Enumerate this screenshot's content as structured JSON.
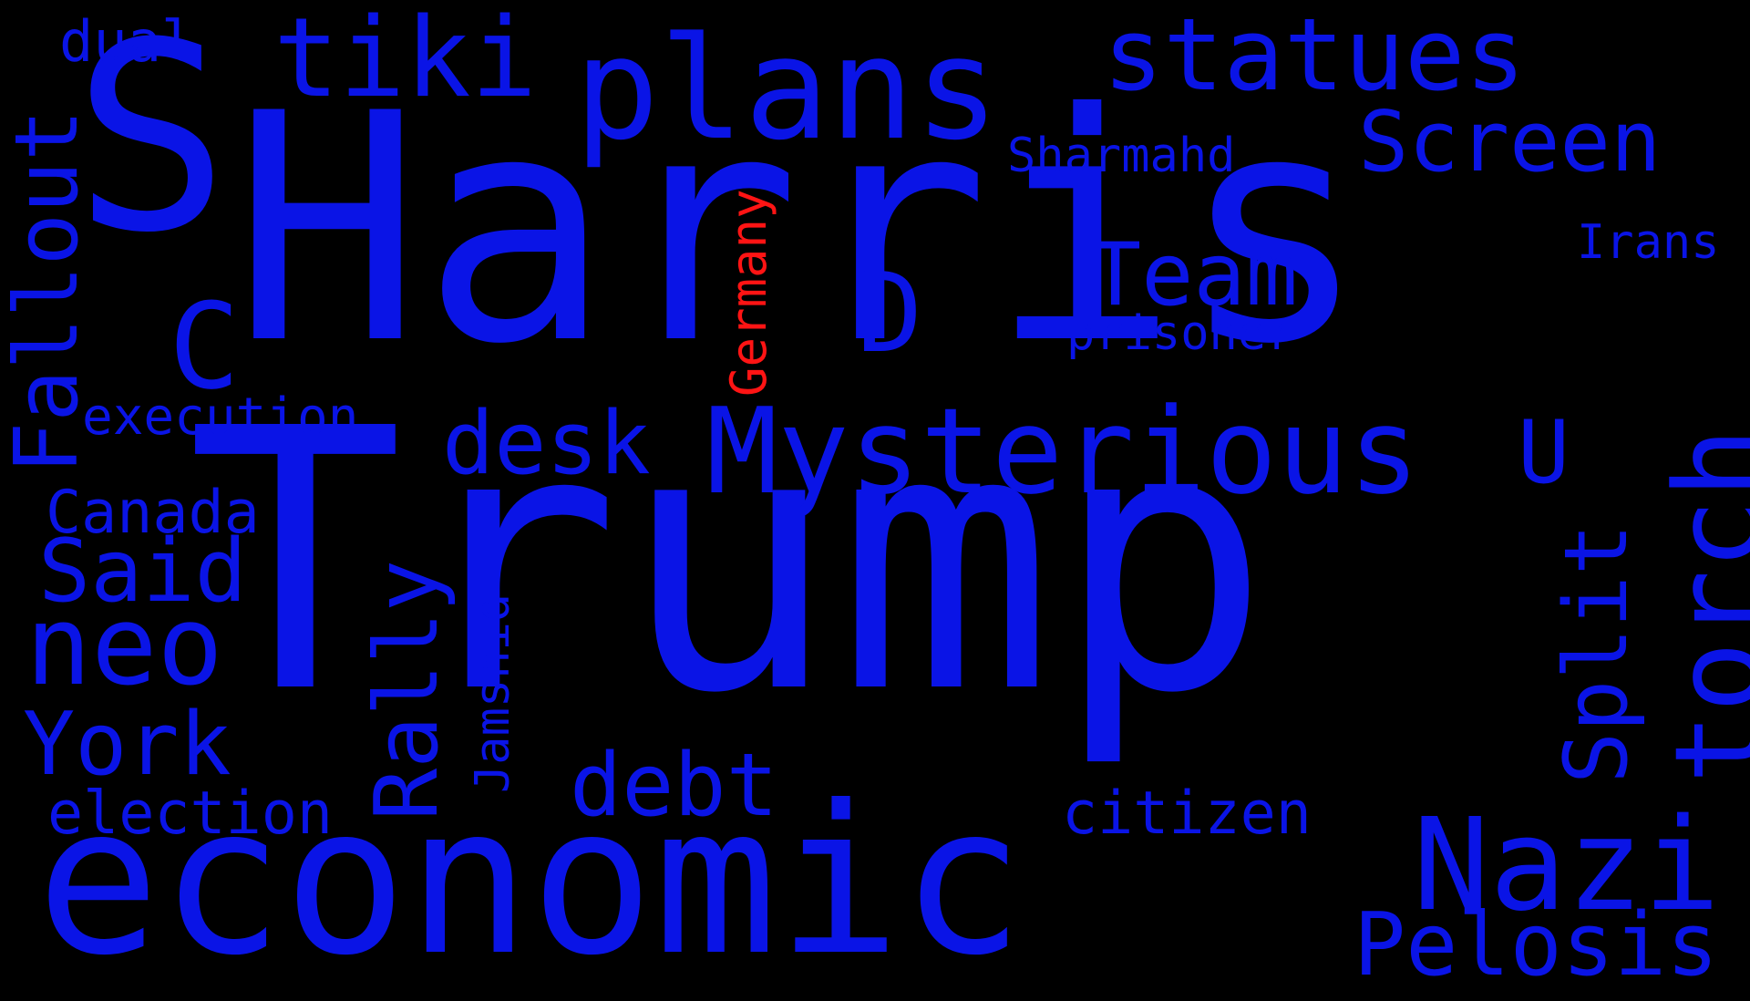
{
  "colors": {
    "background": "#000000",
    "primary": "#0a14e6",
    "highlight": "#ff1414"
  },
  "words": [
    "S",
    "Harris",
    "Trump",
    "economic",
    "tiki",
    "plans",
    "statues",
    "Screen",
    "Sharmahd",
    "Irans",
    "Team",
    "prisoner",
    "D",
    "C",
    "Fallout",
    "dual",
    "Germany",
    "execution",
    "desk",
    "Mysterious",
    "U",
    "torch",
    "Split",
    "Canada",
    "Said",
    "neo",
    "Rally",
    "Jamshid",
    "York",
    "election",
    "debt",
    "citizen",
    "Nazi",
    "Pelosis"
  ]
}
